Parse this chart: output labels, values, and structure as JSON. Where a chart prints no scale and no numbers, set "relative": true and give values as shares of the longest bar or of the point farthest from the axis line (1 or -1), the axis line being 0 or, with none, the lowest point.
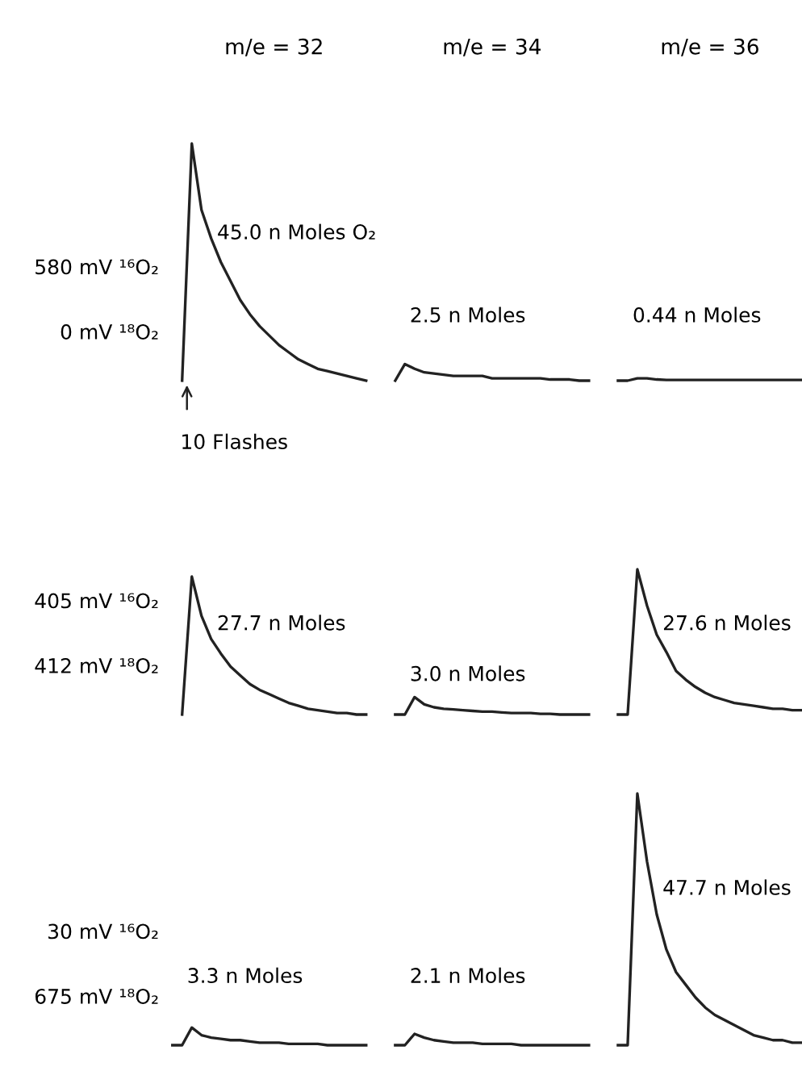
{
  "chart_data": [
    {
      "type": "line",
      "relative": true,
      "tick_labels": false,
      "line_style": "solid",
      "categories": [
        null,
        null,
        null,
        null,
        null,
        null,
        null,
        null,
        null,
        null,
        null,
        null,
        null,
        null,
        null,
        null,
        null,
        null,
        null,
        null,
        null,
        null,
        null,
        null,
        null,
        null,
        null,
        null,
        null,
        null,
        null,
        null,
        null,
        null,
        null,
        null,
        null,
        null,
        null,
        null,
        null,
        null,
        null,
        null,
        null,
        null,
        null,
        null,
        null,
        null,
        null,
        null,
        null,
        null,
        null,
        null,
        null,
        null,
        null,
        null,
        null,
        null,
        null,
        null,
        null,
        null
      ],
      "series": [
        {
          "color": "#222222",
          "values": [
            null,
            0,
            1.0,
            0.72,
            0.6,
            0.5,
            0.42,
            0.34,
            0.28,
            0.23,
            0.19,
            0.15,
            0.12,
            0.09,
            0.07,
            0.05,
            0.04,
            0.03,
            0.02,
            0.01,
            0,
            null,
            null,
            null,
            null,
            null,
            null,
            null,
            null,
            null,
            null,
            null,
            null,
            null,
            null,
            null,
            null,
            null,
            null,
            null,
            null,
            null,
            null,
            null,
            null,
            null,
            null,
            null,
            null,
            null,
            null,
            null,
            null,
            null,
            null,
            null,
            null,
            null,
            null,
            null,
            null,
            null,
            null,
            null,
            null,
            null
          ]
        },
        {
          "color": "#222222",
          "values": [
            null,
            null,
            null,
            null,
            null,
            null,
            null,
            null,
            null,
            null,
            null,
            null,
            null,
            null,
            null,
            null,
            null,
            null,
            null,
            null,
            null,
            null,
            null,
            0,
            0.07,
            0.05,
            0.035,
            0.03,
            0.025,
            0.02,
            0.02,
            0.02,
            0.02,
            0.01,
            0.01,
            0.01,
            0.01,
            0.01,
            0.01,
            0.005,
            0.005,
            0.005,
            0,
            0,
            null,
            null,
            null,
            null,
            null,
            null,
            null,
            null,
            null,
            null,
            null,
            null,
            null,
            null,
            null,
            null,
            null,
            null,
            null,
            null,
            null,
            null
          ]
        },
        {
          "color": "#222222",
          "values": [
            null,
            null,
            null,
            null,
            null,
            null,
            null,
            null,
            null,
            null,
            null,
            null,
            null,
            null,
            null,
            null,
            null,
            null,
            null,
            null,
            null,
            null,
            null,
            null,
            null,
            null,
            null,
            null,
            null,
            null,
            null,
            null,
            null,
            null,
            null,
            null,
            null,
            null,
            null,
            null,
            null,
            null,
            null,
            null,
            null,
            null,
            0,
            0,
            0.01,
            0.01,
            0.005,
            0.003,
            0.003,
            0.003,
            0.003,
            0.003,
            0.003,
            0.003,
            0.003,
            0.003,
            0.003,
            0.003,
            0.003,
            0.003,
            0.003,
            0.003
          ]
        }
      ],
      "annotations": [
        "580 mV ¹⁶O₂",
        "0 mV ¹⁸O₂",
        "45.0 n Moles O₂",
        "2.5 n Moles",
        "0.44 n Moles",
        "10 Flashes",
        "m/e = 32",
        "m/e = 34",
        "m/e = 36"
      ]
    },
    {
      "type": "line",
      "relative": true,
      "tick_labels": false,
      "line_style": "solid",
      "categories": [
        null,
        null,
        null,
        null,
        null,
        null,
        null,
        null,
        null,
        null,
        null,
        null,
        null,
        null,
        null,
        null,
        null,
        null,
        null,
        null,
        null,
        null,
        null,
        null,
        null,
        null,
        null,
        null,
        null,
        null,
        null,
        null,
        null,
        null,
        null,
        null,
        null,
        null,
        null,
        null,
        null,
        null,
        null,
        null,
        null,
        null,
        null,
        null,
        null,
        null,
        null,
        null,
        null,
        null,
        null,
        null,
        null,
        null,
        null,
        null,
        null,
        null,
        null,
        null,
        null,
        null
      ],
      "series": [
        {
          "color": "#222222",
          "values": [
            null,
            0,
            0.95,
            0.68,
            0.52,
            0.42,
            0.33,
            0.27,
            0.21,
            0.17,
            0.14,
            0.11,
            0.08,
            0.06,
            0.04,
            0.03,
            0.02,
            0.01,
            0.01,
            0,
            0,
            null,
            null,
            null,
            null,
            null,
            null,
            null,
            null,
            null,
            null,
            null,
            null,
            null,
            null,
            null,
            null,
            null,
            null,
            null,
            null,
            null,
            null,
            null,
            null,
            null,
            null,
            null,
            null,
            null,
            null,
            null,
            null,
            null,
            null,
            null,
            null,
            null,
            null,
            null,
            null,
            null,
            null,
            null,
            null,
            null
          ]
        },
        {
          "color": "#222222",
          "values": [
            null,
            null,
            null,
            null,
            null,
            null,
            null,
            null,
            null,
            null,
            null,
            null,
            null,
            null,
            null,
            null,
            null,
            null,
            null,
            null,
            null,
            null,
            null,
            0,
            0,
            0.12,
            0.07,
            0.05,
            0.04,
            0.035,
            0.03,
            0.025,
            0.02,
            0.02,
            0.015,
            0.01,
            0.01,
            0.01,
            0.005,
            0.005,
            0,
            0,
            0,
            0,
            null,
            null,
            null,
            null,
            null,
            null,
            null,
            null,
            null,
            null,
            null,
            null,
            null,
            null,
            null,
            null,
            null,
            null,
            null,
            null,
            null,
            null
          ]
        },
        {
          "color": "#222222",
          "values": [
            null,
            null,
            null,
            null,
            null,
            null,
            null,
            null,
            null,
            null,
            null,
            null,
            null,
            null,
            null,
            null,
            null,
            null,
            null,
            null,
            null,
            null,
            null,
            null,
            null,
            null,
            null,
            null,
            null,
            null,
            null,
            null,
            null,
            null,
            null,
            null,
            null,
            null,
            null,
            null,
            null,
            null,
            null,
            null,
            null,
            null,
            0,
            0,
            1.0,
            0.75,
            0.55,
            0.43,
            0.3,
            0.24,
            0.19,
            0.15,
            0.12,
            0.1,
            0.08,
            0.07,
            0.06,
            0.05,
            0.04,
            0.04,
            0.03,
            0.03
          ]
        }
      ],
      "annotations": [
        "405 mV ¹⁶O₂",
        "412 mV ¹⁸O₂",
        "27.7 n Moles",
        "3.0 n Moles",
        "27.6 n Moles"
      ]
    },
    {
      "type": "line",
      "relative": true,
      "tick_labels": false,
      "line_style": "solid",
      "categories": [
        null,
        null,
        null,
        null,
        null,
        null,
        null,
        null,
        null,
        null,
        null,
        null,
        null,
        null,
        null,
        null,
        null,
        null,
        null,
        null,
        null,
        null,
        null,
        null,
        null,
        null,
        null,
        null,
        null,
        null,
        null,
        null,
        null,
        null,
        null,
        null,
        null,
        null,
        null,
        null,
        null,
        null,
        null,
        null,
        null,
        null,
        null,
        null,
        null,
        null,
        null,
        null,
        null,
        null,
        null,
        null,
        null,
        null,
        null,
        null,
        null,
        null,
        null,
        null,
        null,
        null
      ],
      "series": [
        {
          "color": "#222222",
          "values": [
            0,
            0,
            0.07,
            0.04,
            0.03,
            0.025,
            0.02,
            0.02,
            0.015,
            0.01,
            0.01,
            0.01,
            0.005,
            0.005,
            0.005,
            0.005,
            0,
            0,
            0,
            0,
            0,
            null,
            null,
            null,
            null,
            null,
            null,
            null,
            null,
            null,
            null,
            null,
            null,
            null,
            null,
            null,
            null,
            null,
            null,
            null,
            null,
            null,
            null,
            null,
            null,
            null,
            null,
            null,
            null,
            null,
            null,
            null,
            null,
            null,
            null,
            null,
            null,
            null,
            null,
            null,
            null,
            null,
            null,
            null,
            null,
            null
          ]
        },
        {
          "color": "#222222",
          "values": [
            null,
            null,
            null,
            null,
            null,
            null,
            null,
            null,
            null,
            null,
            null,
            null,
            null,
            null,
            null,
            null,
            null,
            null,
            null,
            null,
            null,
            null,
            null,
            0,
            0,
            0.045,
            0.03,
            0.02,
            0.015,
            0.01,
            0.01,
            0.01,
            0.005,
            0.005,
            0.005,
            0.005,
            0,
            0,
            0,
            0,
            0,
            0,
            0,
            0,
            null,
            null,
            null,
            null,
            null,
            null,
            null,
            null,
            null,
            null,
            null,
            null,
            null,
            null,
            null,
            null,
            null,
            null,
            null,
            null,
            null,
            null
          ]
        },
        {
          "color": "#222222",
          "values": [
            null,
            null,
            null,
            null,
            null,
            null,
            null,
            null,
            null,
            null,
            null,
            null,
            null,
            null,
            null,
            null,
            null,
            null,
            null,
            null,
            null,
            null,
            null,
            null,
            null,
            null,
            null,
            null,
            null,
            null,
            null,
            null,
            null,
            null,
            null,
            null,
            null,
            null,
            null,
            null,
            null,
            null,
            null,
            null,
            null,
            null,
            0,
            0,
            1.0,
            0.73,
            0.52,
            0.38,
            0.29,
            0.24,
            0.19,
            0.15,
            0.12,
            0.1,
            0.08,
            0.06,
            0.04,
            0.03,
            0.02,
            0.02,
            0.01,
            0.01
          ]
        }
      ],
      "annotations": [
        "30 mV ¹⁶O₂",
        "675 mV ¹⁸O₂",
        "3.3 n Moles",
        "2.1 n Moles",
        "47.7 n Moles"
      ]
    }
  ]
}
